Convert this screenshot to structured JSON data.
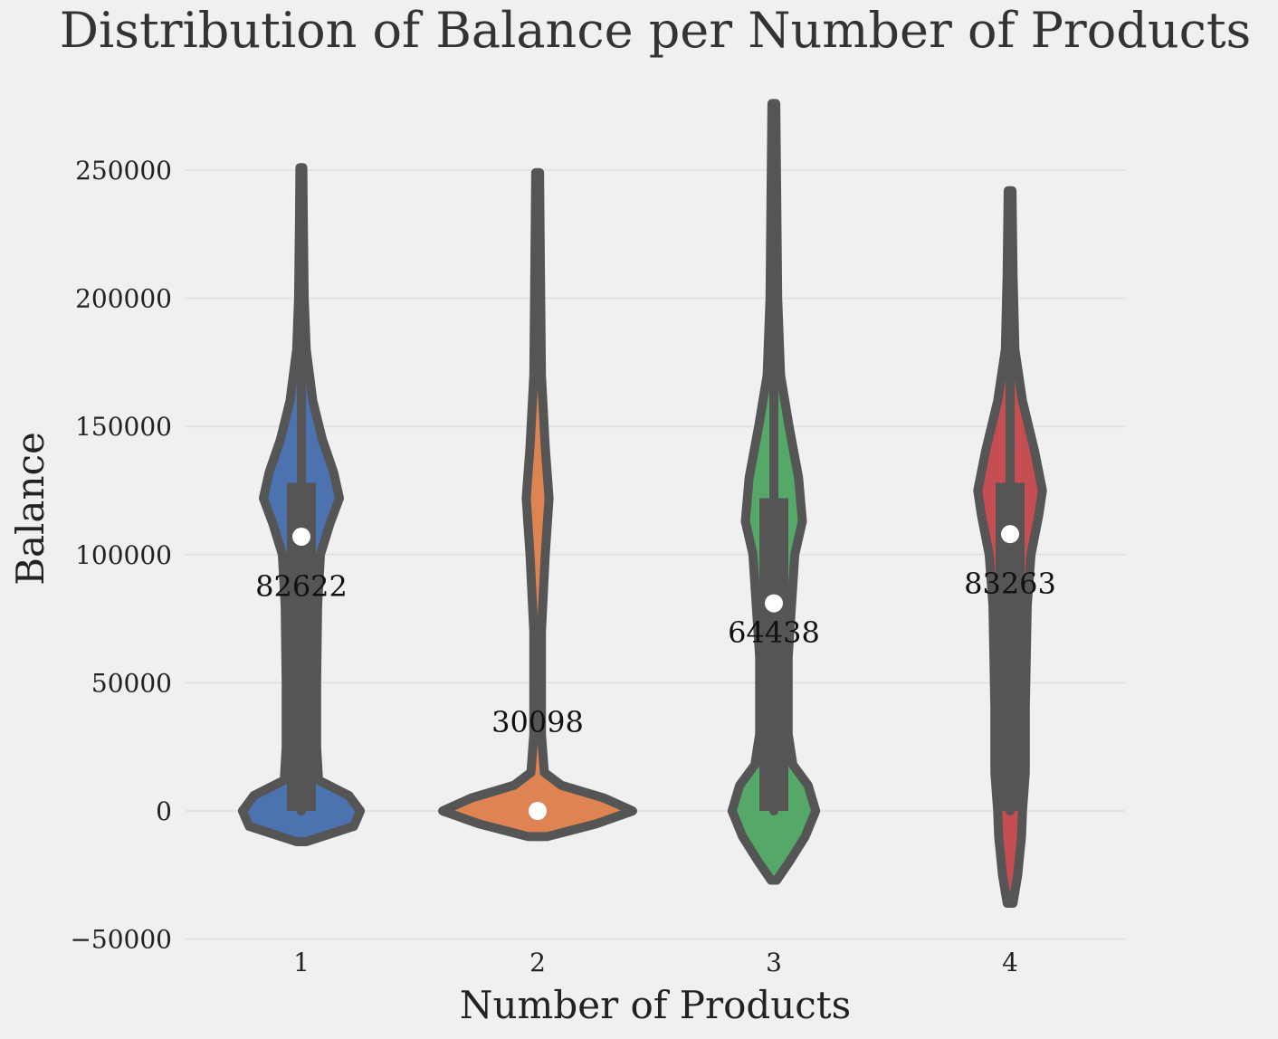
{
  "chart_data": {
    "type": "violin",
    "title": "Distribution of Balance per Number of Products",
    "xlabel": "Number of Products",
    "ylabel": "Balance",
    "categories": [
      "1",
      "2",
      "3",
      "4"
    ],
    "ylim": [
      -50000,
      270000
    ],
    "yticks": [
      -50000,
      0,
      50000,
      100000,
      150000,
      200000,
      250000
    ],
    "ytick_labels": [
      "−50000",
      "0",
      "50000",
      "100000",
      "150000",
      "200000",
      "250000"
    ],
    "grid": "horizontal",
    "colors": [
      "#4c72b0",
      "#dd8452",
      "#55a868",
      "#c44e52"
    ],
    "box_color": "#555555",
    "violins": [
      {
        "category": "1",
        "min": -12000,
        "max": 251000,
        "q1": 0,
        "median": 107000,
        "q3": 128000,
        "whisker_low": 0,
        "whisker_high": 237000,
        "shape": [
          [
            -12000,
            0.05
          ],
          [
            -6000,
            0.55
          ],
          [
            0,
            0.62
          ],
          [
            6000,
            0.5
          ],
          [
            12000,
            0.18
          ],
          [
            25000,
            0.16
          ],
          [
            50000,
            0.16
          ],
          [
            80000,
            0.17
          ],
          [
            100000,
            0.2
          ],
          [
            112000,
            0.3
          ],
          [
            122000,
            0.4
          ],
          [
            132000,
            0.34
          ],
          [
            145000,
            0.22
          ],
          [
            160000,
            0.12
          ],
          [
            180000,
            0.05
          ],
          [
            200000,
            0.03
          ],
          [
            230000,
            0.02
          ],
          [
            251000,
            0.015
          ]
        ],
        "annotation": "82622",
        "annotation_value": 88000
      },
      {
        "category": "2",
        "min": -10000,
        "max": 249000,
        "q1": 0,
        "median": 0,
        "q3": 0,
        "whisker_low": 0,
        "whisker_high": 0,
        "shape": [
          [
            -10000,
            0.1
          ],
          [
            -5000,
            0.62
          ],
          [
            0,
            1.0
          ],
          [
            5000,
            0.7
          ],
          [
            10000,
            0.25
          ],
          [
            15000,
            0.07
          ],
          [
            30000,
            0.04
          ],
          [
            70000,
            0.04
          ],
          [
            100000,
            0.08
          ],
          [
            122000,
            0.12
          ],
          [
            142000,
            0.08
          ],
          [
            170000,
            0.04
          ],
          [
            210000,
            0.03
          ],
          [
            249000,
            0.02
          ]
        ],
        "annotation": "30098",
        "annotation_value": 35000
      },
      {
        "category": "3",
        "min": -27000,
        "max": 276000,
        "q1": 0,
        "median": 81000,
        "q3": 122000,
        "whisker_low": 0,
        "whisker_high": 250000,
        "shape": [
          [
            -27000,
            0.03
          ],
          [
            -20000,
            0.16
          ],
          [
            -10000,
            0.33
          ],
          [
            0,
            0.44
          ],
          [
            10000,
            0.36
          ],
          [
            18000,
            0.2
          ],
          [
            30000,
            0.15
          ],
          [
            60000,
            0.15
          ],
          [
            100000,
            0.22
          ],
          [
            113000,
            0.3
          ],
          [
            130000,
            0.26
          ],
          [
            150000,
            0.16
          ],
          [
            170000,
            0.07
          ],
          [
            200000,
            0.04
          ],
          [
            240000,
            0.03
          ],
          [
            276000,
            0.02
          ]
        ],
        "annotation": "64438",
        "annotation_value": 70000
      },
      {
        "category": "4",
        "min": -36000,
        "max": 242000,
        "q1": 0,
        "median": 108000,
        "q3": 128000,
        "whisker_low": 0,
        "whisker_high": 235000,
        "shape": [
          [
            -36000,
            0.03
          ],
          [
            -25000,
            0.08
          ],
          [
            -10000,
            0.12
          ],
          [
            0,
            0.13
          ],
          [
            15000,
            0.16
          ],
          [
            40000,
            0.16
          ],
          [
            80000,
            0.18
          ],
          [
            100000,
            0.22
          ],
          [
            115000,
            0.3
          ],
          [
            125000,
            0.34
          ],
          [
            140000,
            0.26
          ],
          [
            160000,
            0.13
          ],
          [
            180000,
            0.05
          ],
          [
            210000,
            0.03
          ],
          [
            242000,
            0.02
          ]
        ],
        "annotation": "83263",
        "annotation_value": 89000
      }
    ]
  }
}
